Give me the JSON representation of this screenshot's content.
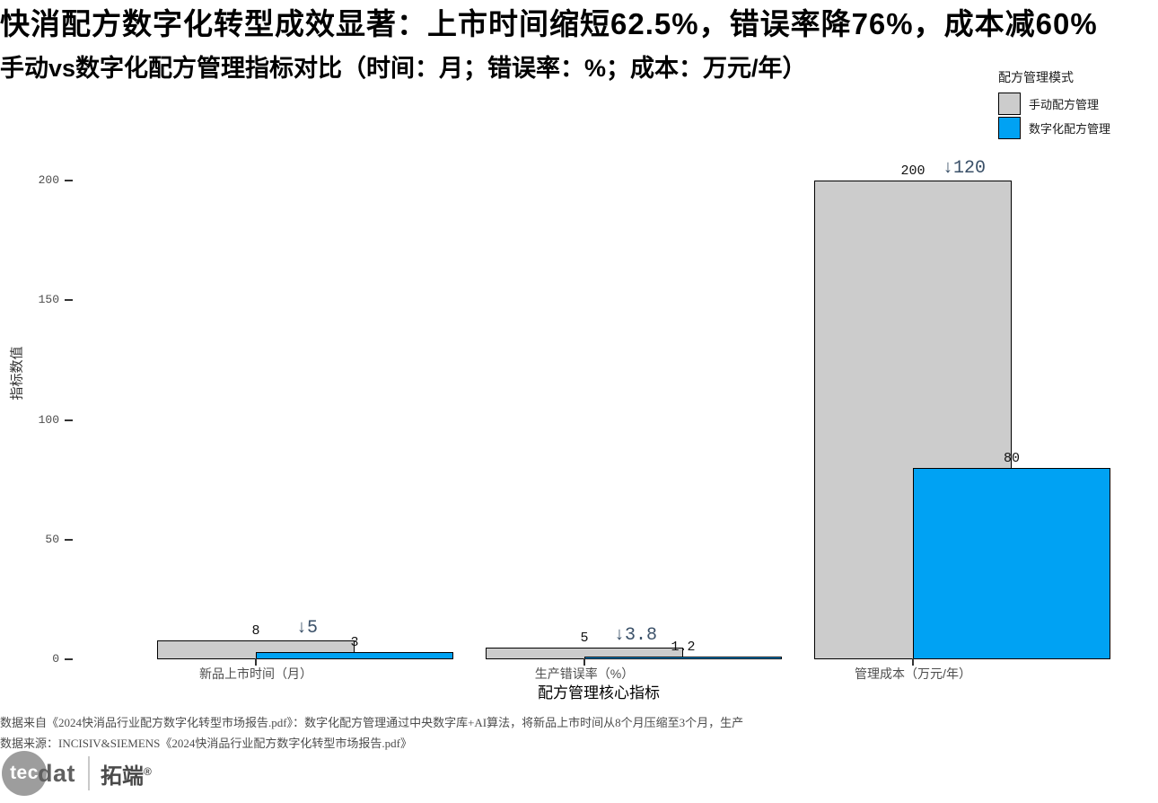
{
  "title": "快消配方数字化转型成效显著：上市时间缩短62.5%，错误率降76%，成本减60%",
  "subtitle": "手动vs数字化配方管理指标对比（时间：月；错误率：%；成本：万元/年）",
  "legend": {
    "title": "配方管理模式",
    "items": [
      {
        "label": "手动配方管理",
        "color": "#cccccc"
      },
      {
        "label": "数字化配方管理",
        "color": "#00a2f3"
      }
    ]
  },
  "chart_data": {
    "type": "bar",
    "title": "快消配方数字化转型成效显著：上市时间缩短62.5%，错误率降76%，成本减60%",
    "subtitle": "手动vs数字化配方管理指标对比（时间：月；错误率：%；成本：万元/年）",
    "categories": [
      "新品上市时间（月）",
      "生产错误率（%）",
      "管理成本（万元/年）"
    ],
    "series": [
      {
        "name": "手动配方管理",
        "values": [
          8,
          5,
          200
        ],
        "color": "#cccccc"
      },
      {
        "name": "数字化配方管理",
        "values": [
          3,
          1.2,
          80
        ],
        "color": "#00a2f3"
      }
    ],
    "annotations": [
      "↓5",
      "↓3.8",
      "↓120"
    ],
    "annotation_color": "#3a5068",
    "xlabel": "配方管理核心指标",
    "ylabel": "指标数值",
    "ylim": [
      0,
      200
    ],
    "yticks": [
      0,
      50,
      100,
      150,
      200
    ],
    "grid": false,
    "legend_position": "top-right",
    "bar_border_color": "#000000"
  },
  "footer": {
    "line1": "数据来自《2024快消品行业配方数字化转型市场报告.pdf》：数字化配方管理通过中央数字库+AI算法，将新品上市时间从8个月压缩至3个月，生产",
    "line2": "数据来源：INCISIV&SIEMENS《2024快消品行业配方数字化转型市场报告.pdf》"
  },
  "logo": {
    "tec": "tec",
    "dat": "dat",
    "brand": "拓端",
    "reg": "®"
  }
}
